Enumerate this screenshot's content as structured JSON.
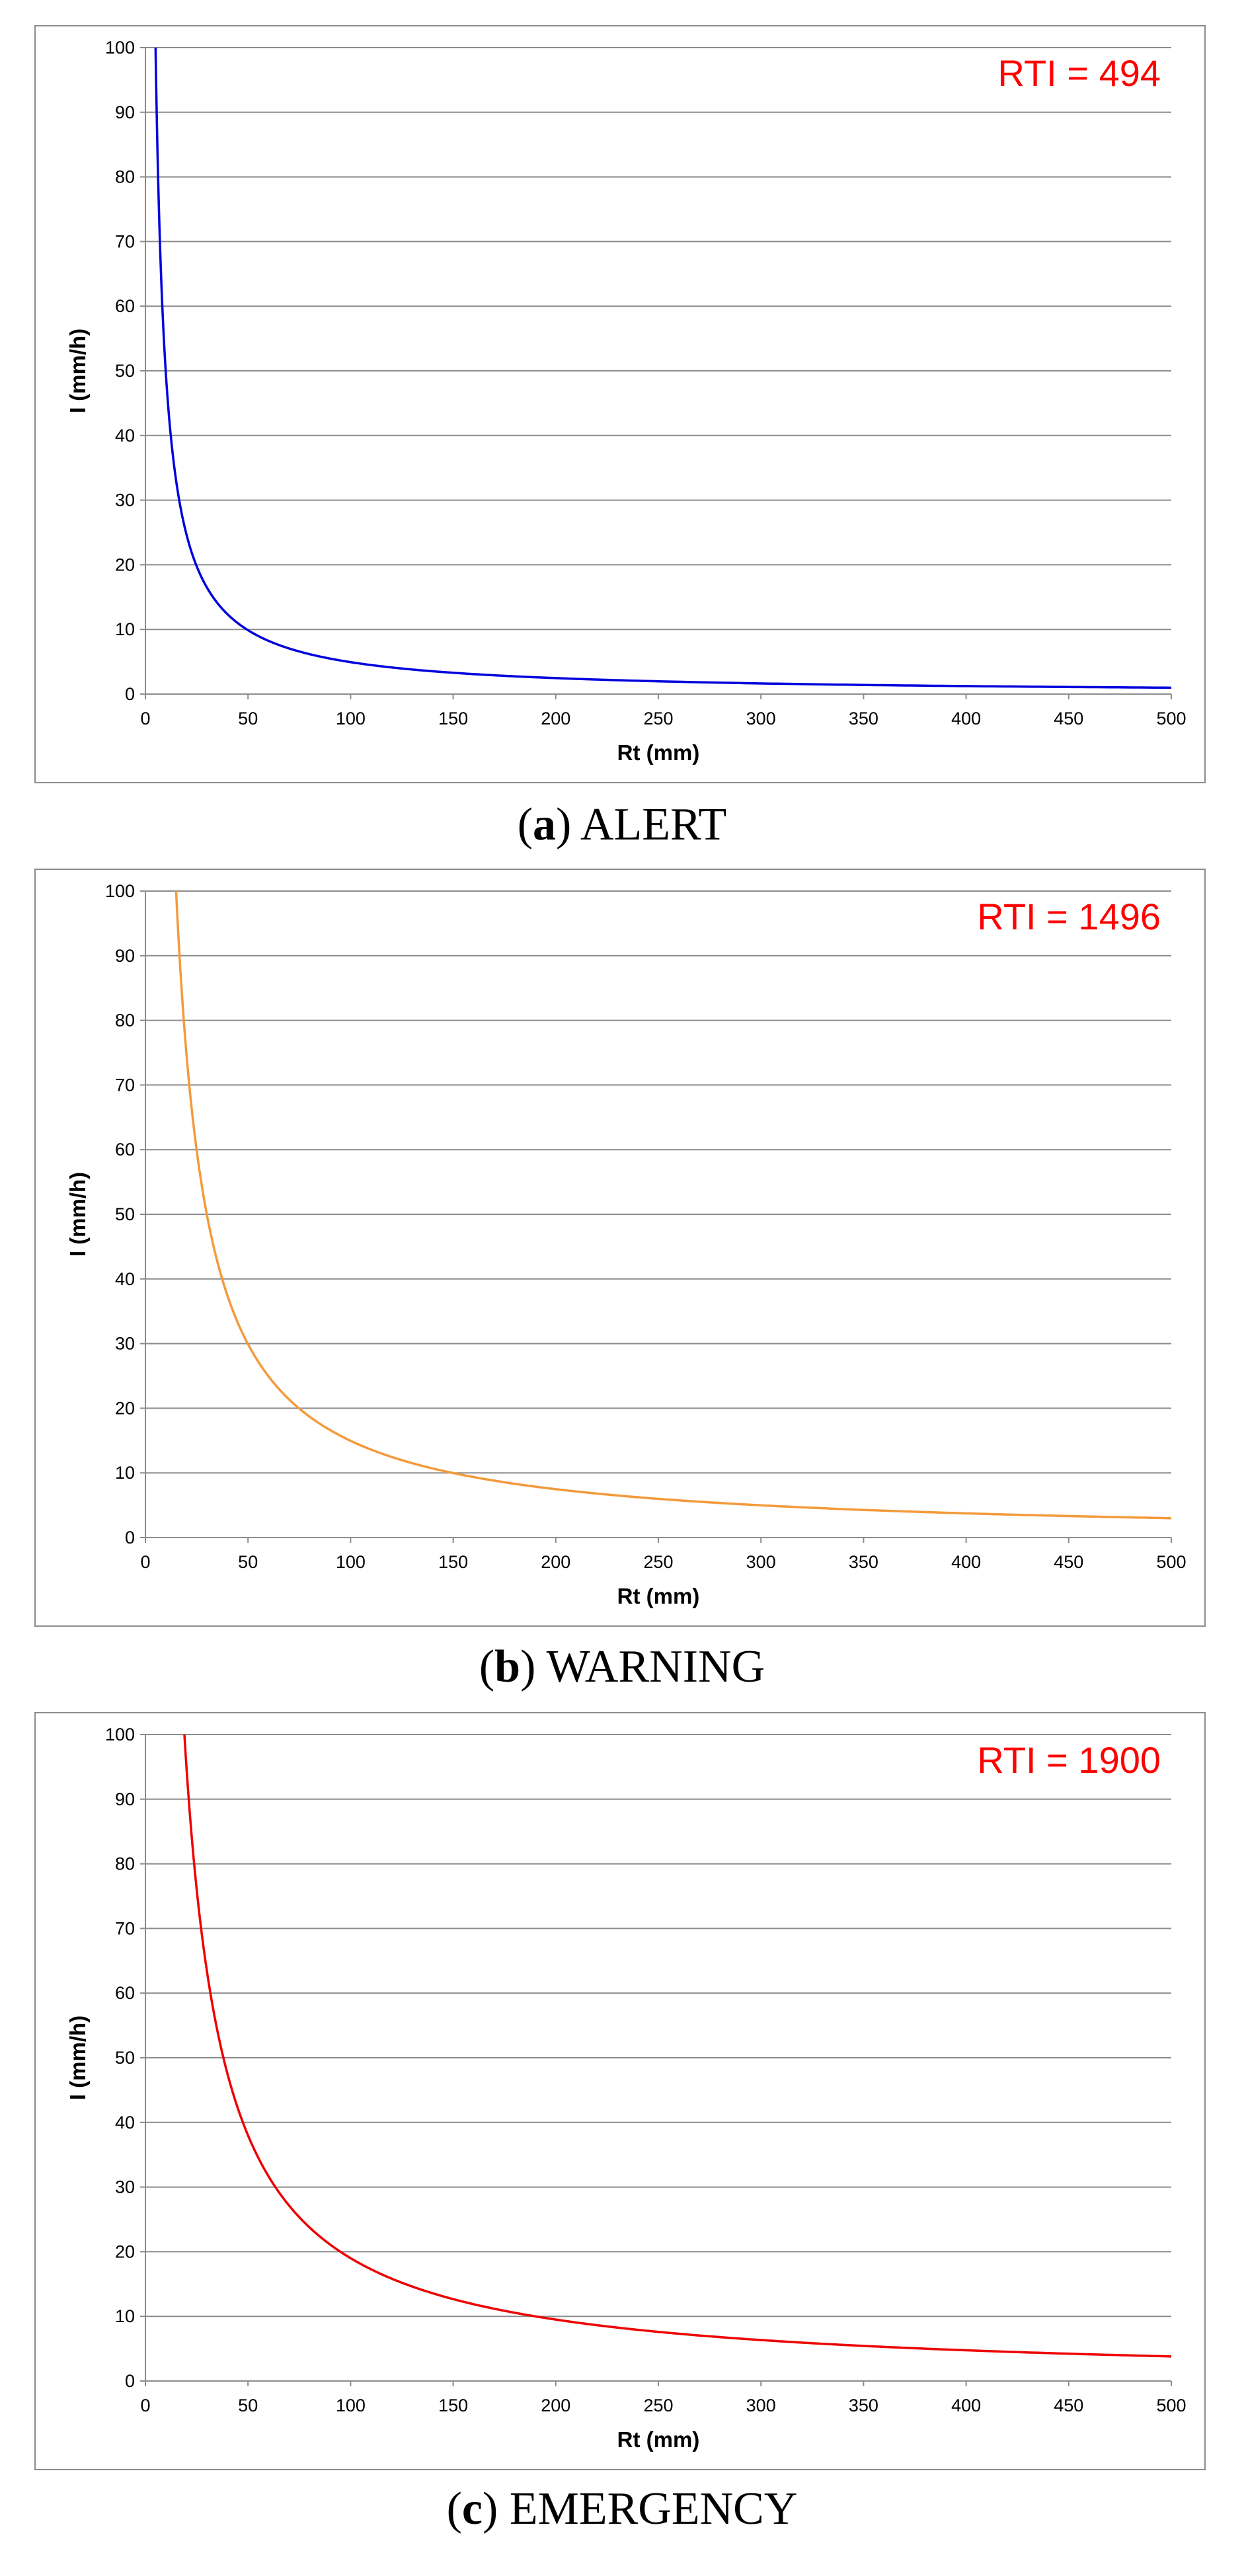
{
  "chart_data": [
    {
      "type": "line",
      "id": "a",
      "annotation": "RTI = 494",
      "rti": 494,
      "xlabel": "Rt (mm)",
      "ylabel": "I (mm/h)",
      "xlim": [
        0,
        500
      ],
      "ylim": [
        0,
        100
      ],
      "x_ticks": [
        0,
        50,
        100,
        150,
        200,
        250,
        300,
        350,
        400,
        450,
        500
      ],
      "y_ticks": [
        0,
        10,
        20,
        30,
        40,
        50,
        60,
        70,
        80,
        90,
        100
      ],
      "grid": true,
      "series": [
        {
          "relation": "I = RTI / Rt",
          "color": "#0000dd",
          "x": [
            4.94,
            6,
            8,
            10,
            15,
            20,
            25,
            30,
            40,
            50,
            75,
            100,
            150,
            200,
            250,
            300,
            350,
            400,
            450,
            500
          ],
          "y": [
            100,
            82.3,
            61.8,
            49.4,
            32.9,
            24.7,
            19.8,
            16.5,
            12.4,
            9.9,
            6.6,
            4.9,
            3.3,
            2.5,
            2.0,
            1.6,
            1.4,
            1.2,
            1.1,
            1.0
          ]
        }
      ],
      "caption_letter": "a",
      "caption_text": "ALERT"
    },
    {
      "type": "line",
      "id": "b",
      "annotation": "RTI = 1496",
      "rti": 1496,
      "xlabel": "Rt (mm)",
      "ylabel": "I (mm/h)",
      "xlim": [
        0,
        500
      ],
      "ylim": [
        0,
        100
      ],
      "x_ticks": [
        0,
        50,
        100,
        150,
        200,
        250,
        300,
        350,
        400,
        450,
        500
      ],
      "y_ticks": [
        0,
        10,
        20,
        30,
        40,
        50,
        60,
        70,
        80,
        90,
        100
      ],
      "grid": true,
      "series": [
        {
          "relation": "I = RTI / Rt",
          "color": "#f39a3c",
          "x": [
            14.96,
            17,
            20,
            25,
            30,
            40,
            50,
            75,
            100,
            150,
            200,
            250,
            300,
            350,
            400,
            450,
            500
          ],
          "y": [
            100,
            88.0,
            74.8,
            59.8,
            49.9,
            37.4,
            29.9,
            19.9,
            15.0,
            10.0,
            7.5,
            6.0,
            5.0,
            4.3,
            3.7,
            3.3,
            3.0
          ]
        }
      ],
      "caption_letter": "b",
      "caption_text": "WARNING"
    },
    {
      "type": "line",
      "id": "c",
      "annotation": "RTI = 1900",
      "rti": 1900,
      "xlabel": "Rt (mm)",
      "ylabel": "I (mm/h)",
      "xlim": [
        0,
        500
      ],
      "ylim": [
        0,
        100
      ],
      "x_ticks": [
        0,
        50,
        100,
        150,
        200,
        250,
        300,
        350,
        400,
        450,
        500
      ],
      "y_ticks": [
        0,
        10,
        20,
        30,
        40,
        50,
        60,
        70,
        80,
        90,
        100
      ],
      "grid": true,
      "series": [
        {
          "relation": "I = RTI / Rt",
          "color": "#ee0000",
          "x": [
            19,
            22,
            25,
            30,
            40,
            50,
            75,
            100,
            150,
            200,
            250,
            300,
            350,
            400,
            450,
            500
          ],
          "y": [
            100,
            86.4,
            76.0,
            63.3,
            47.5,
            38.0,
            25.3,
            19.0,
            12.7,
            9.5,
            7.6,
            6.3,
            5.4,
            4.8,
            4.2,
            3.8
          ]
        }
      ],
      "caption_letter": "c",
      "caption_text": "EMERGENCY"
    }
  ]
}
